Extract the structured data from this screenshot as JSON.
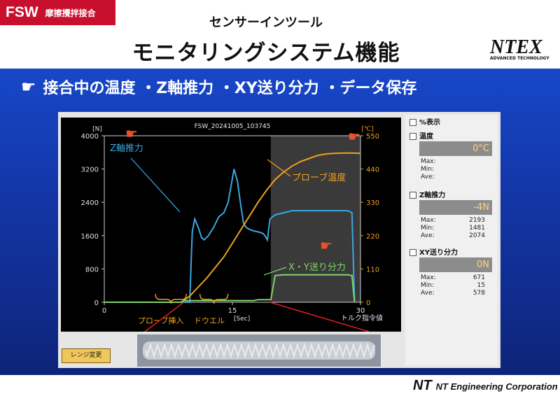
{
  "header": {
    "badge_fsw": "FSW",
    "badge_jp": "摩擦攪拌接合",
    "subtitle": "センサーインツール",
    "title": "モニタリングシステム機能",
    "logo_mark": "NTEX",
    "logo_sub": "ADVANCED TECHNOLOGY"
  },
  "bullet": {
    "icon": "pointing-hand-icon",
    "text": "接合中の温度 ・Z軸推力 ・XY送り分力 ・データ保存"
  },
  "chart_data": {
    "type": "line",
    "title": "FSW_20241005_103745",
    "xlabel": "[Sec]",
    "ylabel_left": "[N]",
    "ylabel_right": "[℃]",
    "xlim": [
      0,
      30
    ],
    "ylim": [
      0,
      4000
    ],
    "ylim_right": [
      0,
      550
    ],
    "x_ticks": [
      "0",
      "15",
      "30"
    ],
    "y_ticks": [
      "0",
      "800",
      "1600",
      "2400",
      "3200",
      "4000"
    ],
    "y_ticks_right": [
      "0",
      "110",
      "220",
      "330",
      "440",
      "550"
    ],
    "right_axis_caption": "トルク指令値",
    "shaded_region": [
      19.5,
      30
    ],
    "colors": {
      "z": "#3aa7e0",
      "temp": "#f0a020",
      "xy": "#7fd46a"
    },
    "series": [
      {
        "name": "Z軸推力",
        "axis": "left",
        "x": [
          0,
          10,
          10.3,
          10.6,
          11,
          11.4,
          11.7,
          12.2,
          12.8,
          13.4,
          14,
          14.5,
          15.2,
          15.6,
          16,
          16.3,
          16.6,
          17,
          17.4,
          17.8,
          18.2,
          18.6,
          18.8,
          19.1,
          19.4,
          20,
          22,
          25,
          28.5,
          29,
          29.3
        ],
        "y": [
          0,
          0,
          1700,
          2000,
          1800,
          1550,
          1500,
          1600,
          1800,
          2050,
          2150,
          2400,
          3200,
          2900,
          2300,
          1900,
          1800,
          1750,
          1720,
          1700,
          1680,
          1650,
          1600,
          1500,
          2000,
          2100,
          2200,
          2200,
          2200,
          2150,
          0
        ]
      },
      {
        "name": "プローブ温度",
        "axis": "right",
        "x": [
          9,
          10,
          12,
          14,
          15,
          16,
          17,
          18,
          19,
          20,
          21,
          22,
          23,
          24,
          25,
          26,
          27,
          28,
          29,
          30
        ],
        "y": [
          0,
          20,
          80,
          150,
          195,
          240,
          285,
          330,
          370,
          405,
          430,
          450,
          465,
          475,
          485,
          490,
          492,
          493,
          493,
          492
        ]
      },
      {
        "name": "X・Y送り分力",
        "axis": "left",
        "x": [
          0,
          9,
          9.3,
          17.5,
          18,
          19.5,
          20,
          21,
          28.5,
          29,
          29.3
        ],
        "y": [
          0,
          0,
          40,
          40,
          60,
          60,
          640,
          660,
          660,
          640,
          0
        ]
      }
    ],
    "annotations": [
      {
        "text": "Z軸推力",
        "color": "#3aa7e0"
      },
      {
        "text": "プローブ温度",
        "color": "#f0a020"
      },
      {
        "text": "X・Y送り分力",
        "color": "#7fd46a"
      },
      {
        "text": "プローブ挿入",
        "color": "#f0a020"
      },
      {
        "text": "ドウエル",
        "color": "#f0a020"
      }
    ]
  },
  "panel": {
    "percent_label": "%表示",
    "temp": {
      "label": "温度",
      "value": "0°C",
      "max": "Max:",
      "min": "Min:",
      "ave": "Ave:",
      "max_v": "",
      "min_v": "",
      "ave_v": ""
    },
    "z": {
      "label": "Z軸推力",
      "value": "-4N",
      "max": "Max:",
      "min": "Min:",
      "ave": "Ave:",
      "max_v": "2193",
      "min_v": "1481",
      "ave_v": "2074"
    },
    "xy": {
      "label": "XY送り分力",
      "value": "0N",
      "max": "Max:",
      "min": "Min:",
      "ave": "Ave:",
      "max_v": "671",
      "min_v": "15",
      "ave_v": "578"
    }
  },
  "range_button": "レンジ変更",
  "footer": {
    "mark": "NT",
    "corp": "NT Engineering Corporation"
  }
}
